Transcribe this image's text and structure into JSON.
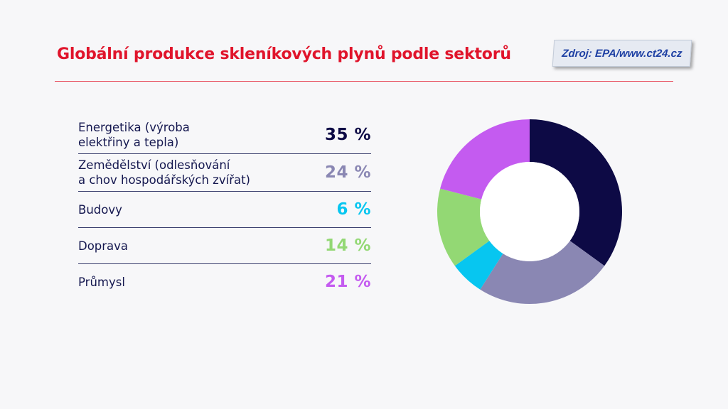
{
  "header": {
    "title": "Globální produkce skleníkových plynů podle sektorů",
    "source": "Zdroj: EPA/www.ct24.cz"
  },
  "legend": [
    {
      "label": "Energetika (výroba\nelektřiny a tepla)",
      "value_text": "35 %",
      "color": "#0d0a45"
    },
    {
      "label": "Zemědělství (odlesňování\na chov hospodářských zvířat)",
      "value_text": "24 %",
      "color": "#8a87b3"
    },
    {
      "label": "Budovy",
      "value_text": "6 %",
      "color": "#07c6f0"
    },
    {
      "label": "Doprava",
      "value_text": "14 %",
      "color": "#93d874"
    },
    {
      "label": "Průmysl",
      "value_text": "21 %",
      "color": "#c45bf0"
    }
  ],
  "colors": {
    "title": "#e0142b",
    "rule": "#e84a5a",
    "background": "#f7f7f9"
  },
  "chart_data": {
    "type": "pie",
    "variant": "donut",
    "title": "Globální produkce skleníkových plynů podle sektorů",
    "categories": [
      "Energetika (výroba elektřiny a tepla)",
      "Zemědělství (odlesňování a chov hospodářských zvířat)",
      "Budovy",
      "Doprava",
      "Průmysl"
    ],
    "values": [
      35,
      24,
      6,
      14,
      21
    ],
    "colors": [
      "#0d0a45",
      "#8a87b3",
      "#07c6f0",
      "#93d874",
      "#c45bf0"
    ],
    "unit": "%",
    "start": "top",
    "direction": "clockwise",
    "legend_placement": "left"
  }
}
